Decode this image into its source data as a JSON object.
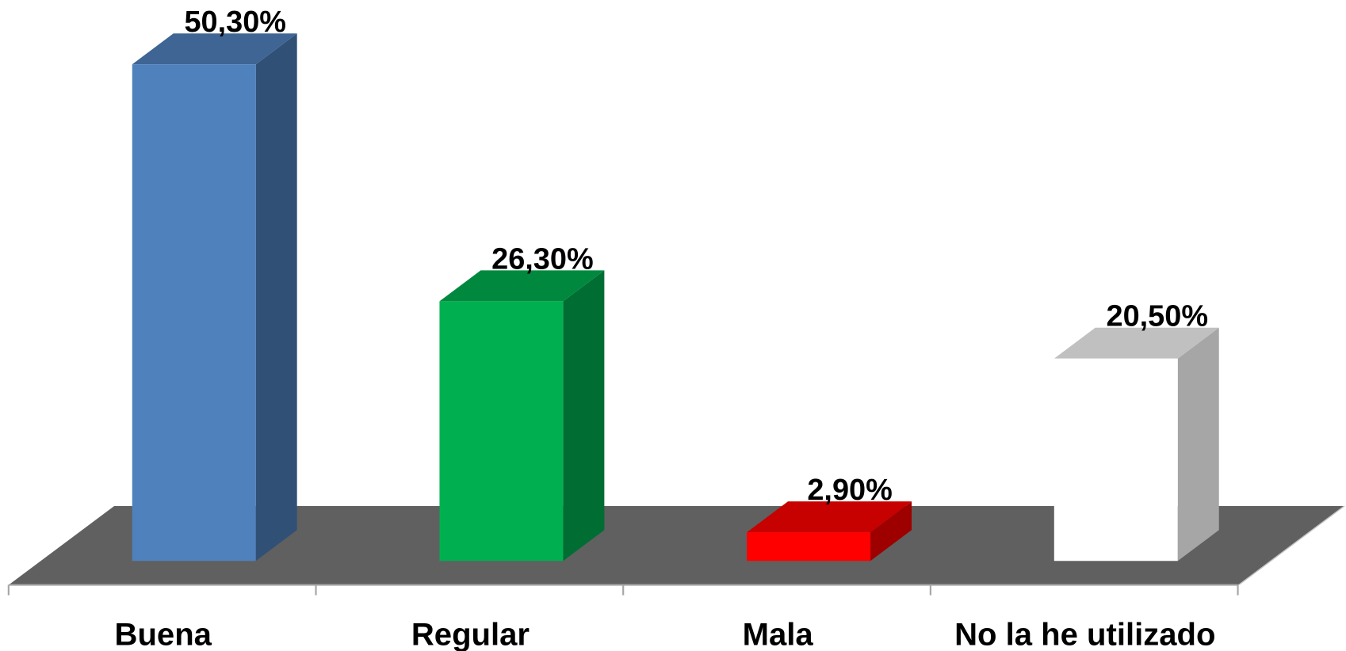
{
  "chart_data": {
    "type": "bar3d",
    "categories": [
      "Buena",
      "Regular",
      "Mala",
      "No la he utilizado"
    ],
    "values": [
      50.3,
      26.3,
      2.9,
      20.5
    ],
    "value_labels": [
      "50,30%",
      "26,30%",
      "2,90%",
      "20,50%"
    ],
    "colors": [
      "#4f81bd",
      "#00b050",
      "#ff0000",
      "#ffffff"
    ],
    "floor_color": "#606060"
  }
}
